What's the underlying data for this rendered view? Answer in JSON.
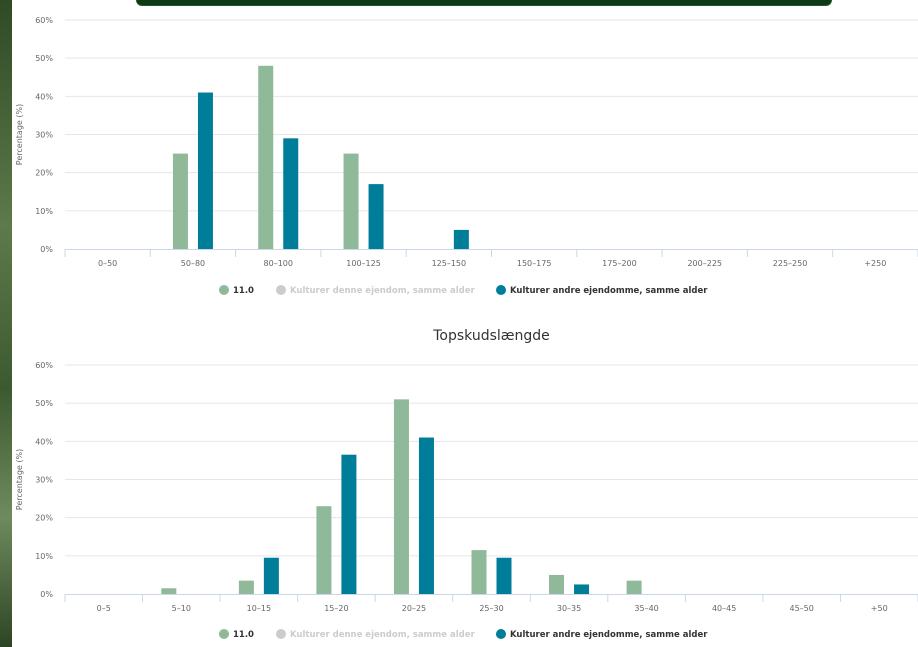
{
  "colors": {
    "series_1": "#8fb998",
    "series_2": "#c8c8c8",
    "series_3": "#007d99"
  },
  "chart_data": [
    {
      "type": "bar",
      "title": "",
      "ylabel": "Percentage (%)",
      "ylim": [
        0,
        60
      ],
      "yticks": [
        "0%",
        "10%",
        "20%",
        "30%",
        "40%",
        "50%",
        "60%"
      ],
      "categories": [
        "0–50",
        "50–80",
        "80–100",
        "100–125",
        "125–150",
        "150–175",
        "175–200",
        "200–225",
        "225–250",
        "+250"
      ],
      "legend_position": "bottom-center",
      "series": [
        {
          "name": "11.0",
          "values": [
            0,
            25,
            48,
            25,
            0,
            0,
            0,
            0,
            0,
            0
          ],
          "active": true
        },
        {
          "name": "Kulturer denne ejendom, samme alder",
          "values": [
            0,
            0,
            0,
            0,
            0,
            0,
            0,
            0,
            0,
            0
          ],
          "active": false
        },
        {
          "name": "Kulturer andre ejendomme, samme alder",
          "values": [
            0,
            41,
            29,
            17,
            5,
            0,
            0,
            0,
            0,
            0
          ],
          "active": true
        }
      ]
    },
    {
      "type": "bar",
      "title": "Topskudslængde",
      "ylabel": "Percentage (%)",
      "ylim": [
        0,
        60
      ],
      "yticks": [
        "0%",
        "10%",
        "20%",
        "30%",
        "40%",
        "50%",
        "60%"
      ],
      "categories": [
        "0–5",
        "5–10",
        "10–15",
        "15–20",
        "20–25",
        "25–30",
        "30–35",
        "35–40",
        "40–45",
        "45–50",
        "+50"
      ],
      "legend_position": "bottom-center",
      "series": [
        {
          "name": "11.0",
          "values": [
            0,
            1.5,
            3.5,
            23,
            51,
            11.5,
            5,
            3.5,
            0,
            0,
            0
          ],
          "active": true
        },
        {
          "name": "Kulturer denne ejendom, samme alder",
          "values": [
            0,
            0,
            0,
            0,
            0,
            0,
            0,
            0,
            0,
            0,
            0
          ],
          "active": false
        },
        {
          "name": "Kulturer andre ejendomme, samme alder",
          "values": [
            0,
            0,
            9.5,
            36.5,
            41,
            9.5,
            2.5,
            0,
            0,
            0,
            0
          ],
          "active": true
        }
      ]
    }
  ]
}
